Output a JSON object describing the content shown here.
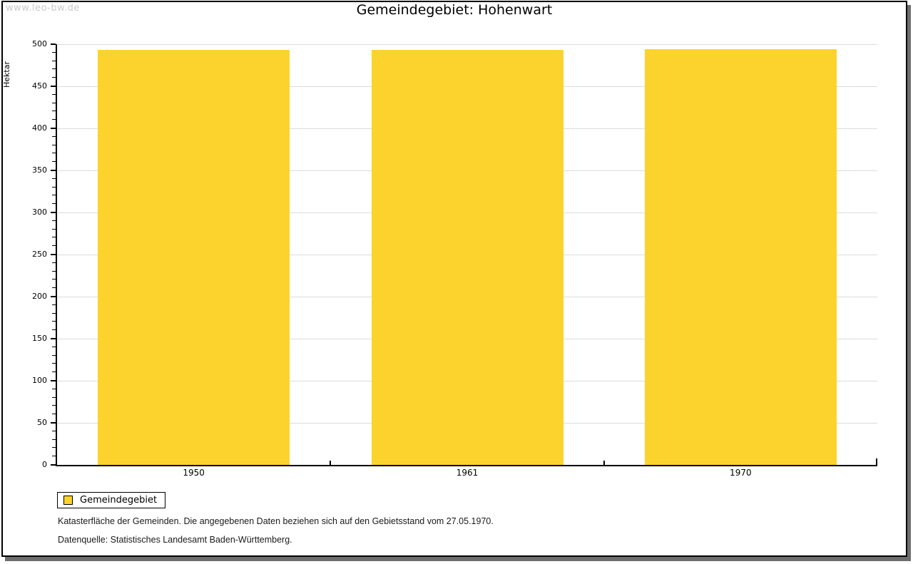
{
  "watermark": "www.leo-bw.de",
  "title": "Gemeindegebiet: Hohenwart",
  "legend": {
    "label": "Gemeindegebiet"
  },
  "footer": {
    "line1": "Katasterfläche der Gemeinden. Die angegebenen Daten beziehen sich auf den Gebietsstand vom 27.05.1970.",
    "line2": "Datenquelle: Statistisches Landesamt Baden-Württemberg."
  },
  "chart_data": {
    "type": "bar",
    "title": "Gemeindegebiet: Hohenwart",
    "categories": [
      "1950",
      "1961",
      "1970"
    ],
    "series": [
      {
        "name": "Gemeindegebiet",
        "values": [
          493,
          493,
          494
        ]
      }
    ],
    "xlabel": "",
    "ylabel": "Hektar",
    "ylim": [
      0,
      500
    ],
    "ytick_interval": 50,
    "minor_tick_interval": 10,
    "grid": true,
    "legend_position": "bottom-left",
    "bar_color": "#fcd32d",
    "gridline_color": "#dcdcdc"
  }
}
